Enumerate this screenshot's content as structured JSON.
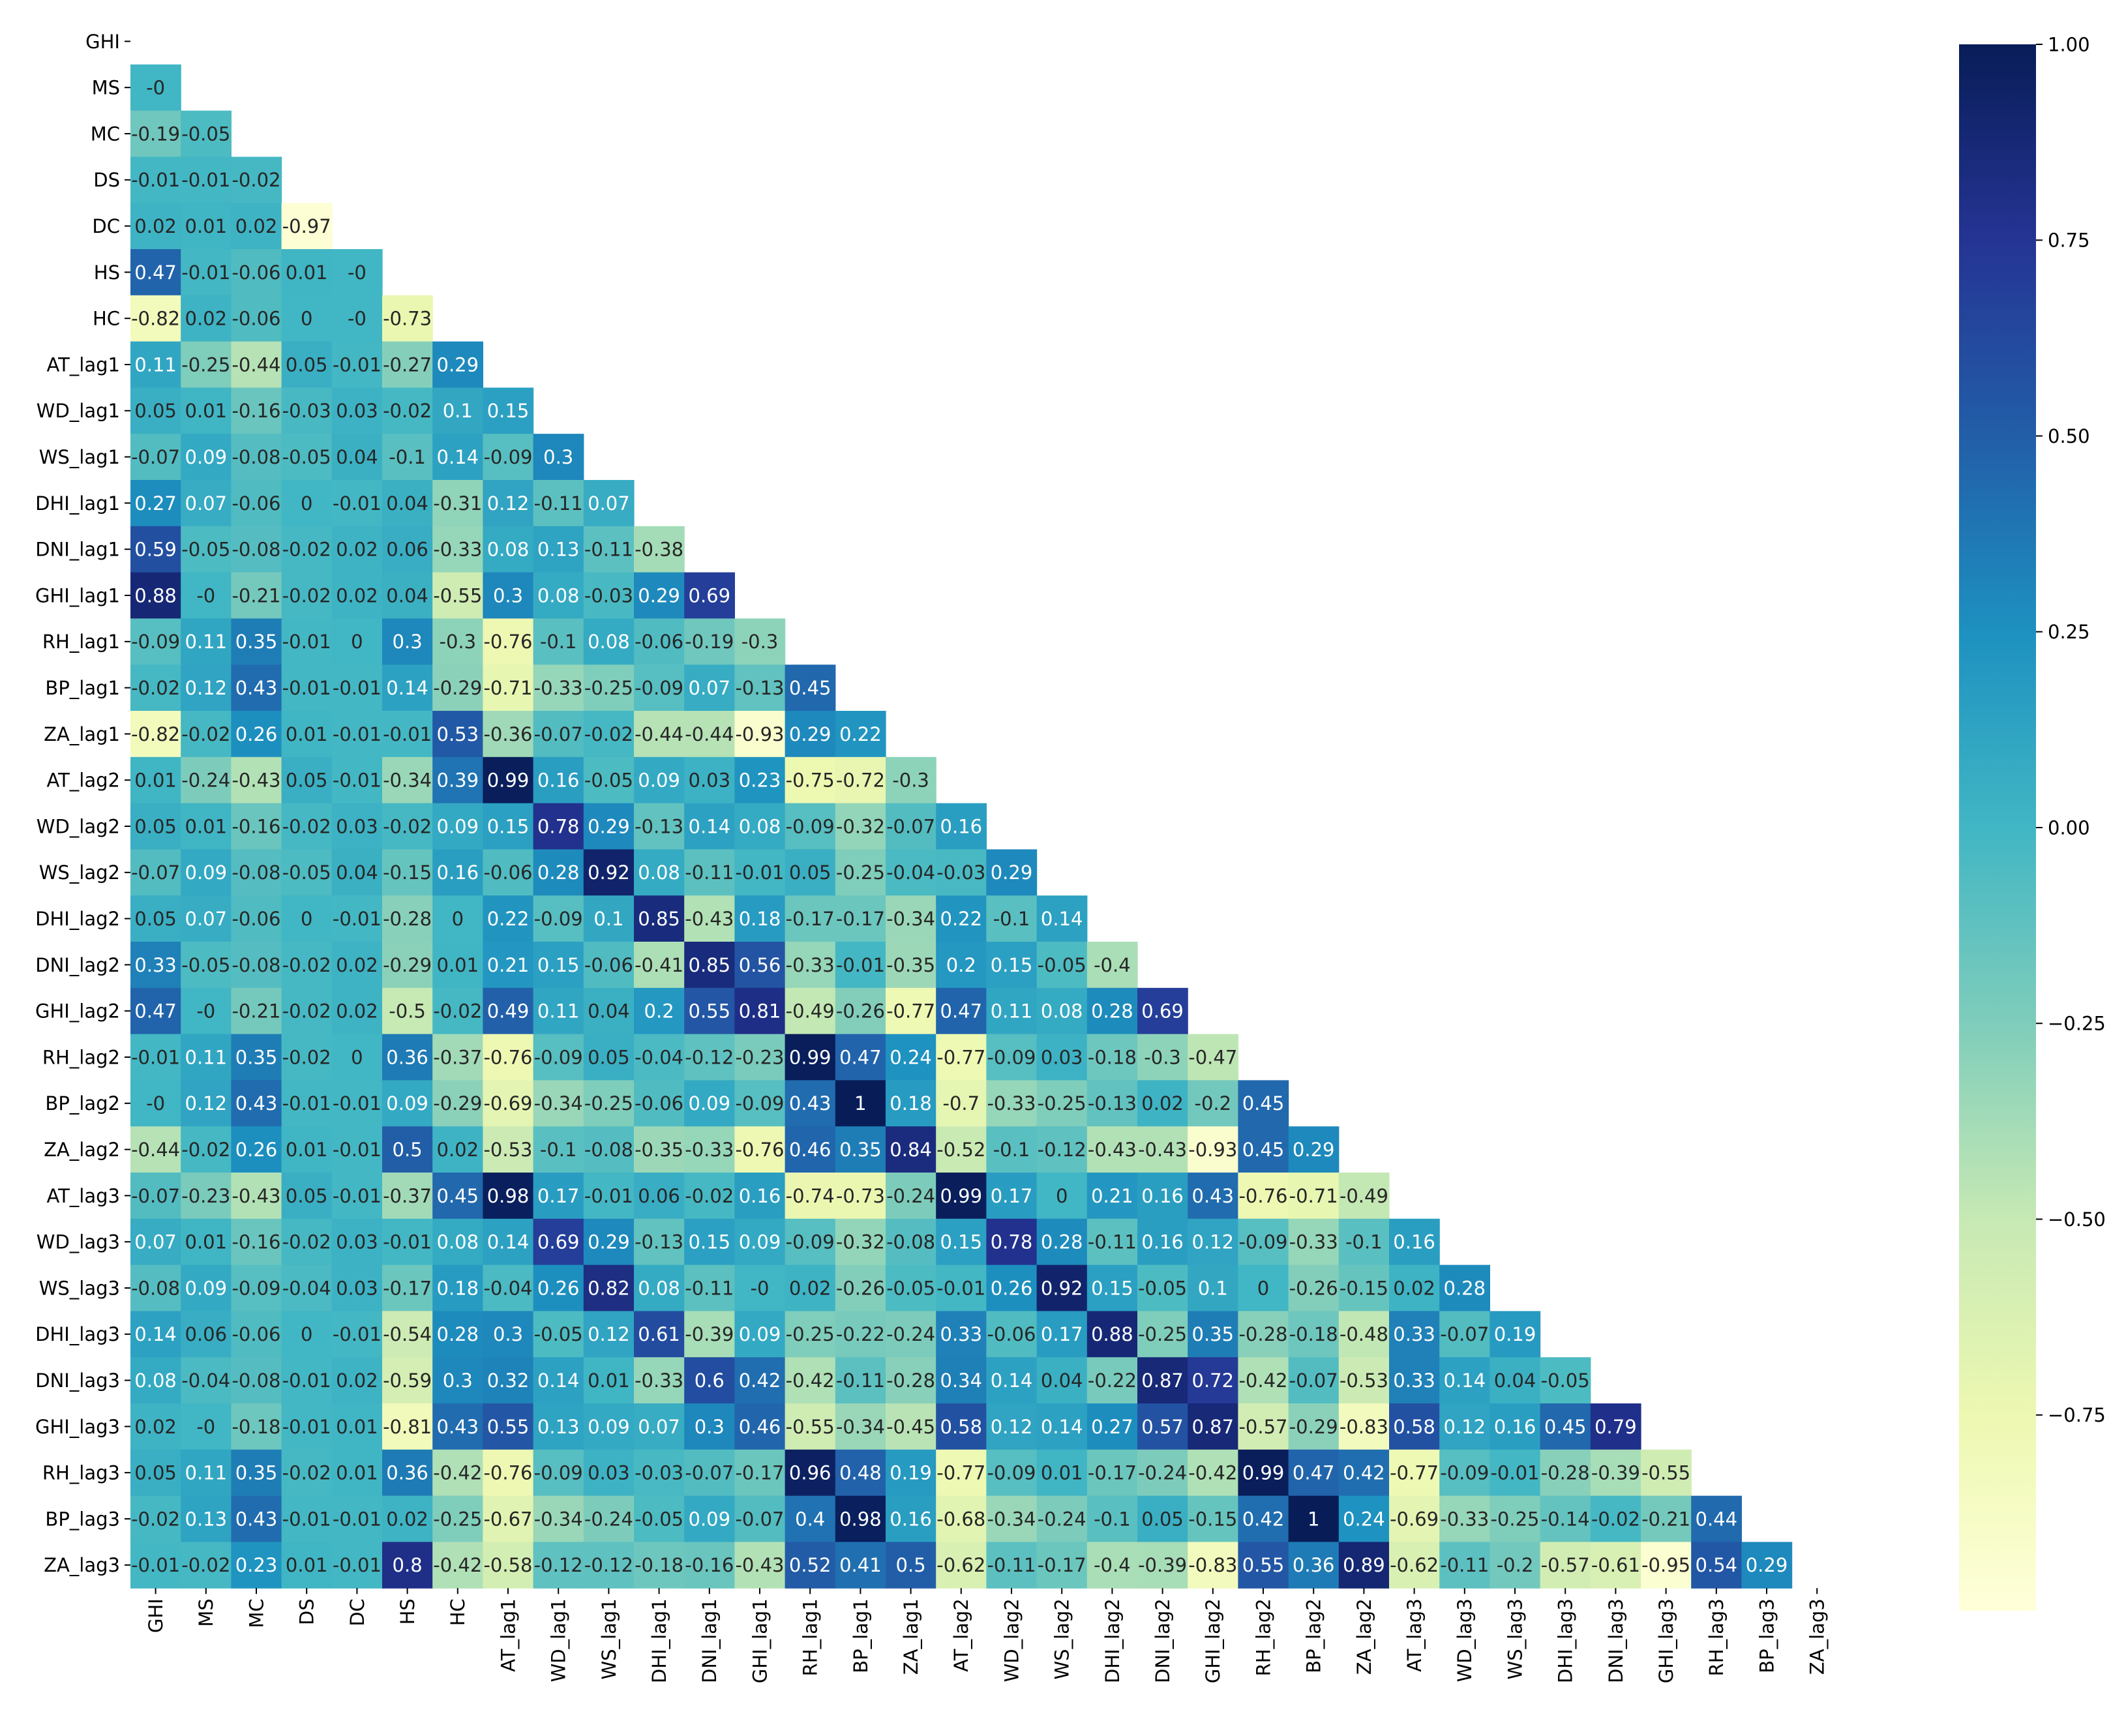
{
  "chart_data": {
    "type": "heatmap",
    "variables": [
      "GHI",
      "MS",
      "MC",
      "DS",
      "DC",
      "HS",
      "HC",
      "AT_lag1",
      "WD_lag1",
      "WS_lag1",
      "DHI_lag1",
      "DNI_lag1",
      "GHI_lag1",
      "RH_lag1",
      "BP_lag1",
      "ZA_lag1",
      "AT_lag2",
      "WD_lag2",
      "WS_lag2",
      "DHI_lag2",
      "DNI_lag2",
      "GHI_lag2",
      "RH_lag2",
      "BP_lag2",
      "ZA_lag2",
      "AT_lag3",
      "WD_lag3",
      "WS_lag3",
      "DHI_lag3",
      "DNI_lag3",
      "GHI_lag3",
      "RH_lag3",
      "BP_lag3",
      "ZA_lag3"
    ],
    "mask": "lower-triangle (diagonal and upper triangle empty)",
    "values": [
      [],
      [
        "-0"
      ],
      [
        "-0.19",
        "-0.05"
      ],
      [
        "-0.01",
        "-0.01",
        "-0.02"
      ],
      [
        "0.02",
        "0.01",
        "0.02",
        "-0.97"
      ],
      [
        "0.47",
        "-0.01",
        "-0.06",
        "0.01",
        "-0"
      ],
      [
        "-0.82",
        "0.02",
        "-0.06",
        "0",
        "-0",
        "-0.73"
      ],
      [
        "0.11",
        "-0.25",
        "-0.44",
        "0.05",
        "-0.01",
        "-0.27",
        "0.29"
      ],
      [
        "0.05",
        "0.01",
        "-0.16",
        "-0.03",
        "0.03",
        "-0.02",
        "0.1",
        "0.15"
      ],
      [
        "-0.07",
        "0.09",
        "-0.08",
        "-0.05",
        "0.04",
        "-0.1",
        "0.14",
        "-0.09",
        "0.3"
      ],
      [
        "0.27",
        "0.07",
        "-0.06",
        "0",
        "-0.01",
        "0.04",
        "-0.31",
        "0.12",
        "-0.11",
        "0.07"
      ],
      [
        "0.59",
        "-0.05",
        "-0.08",
        "-0.02",
        "0.02",
        "0.06",
        "-0.33",
        "0.08",
        "0.13",
        "-0.11",
        "-0.38"
      ],
      [
        "0.88",
        "-0",
        "-0.21",
        "-0.02",
        "0.02",
        "0.04",
        "-0.55",
        "0.3",
        "0.08",
        "-0.03",
        "0.29",
        "0.69"
      ],
      [
        "-0.09",
        "0.11",
        "0.35",
        "-0.01",
        "0",
        "0.3",
        "-0.3",
        "-0.76",
        "-0.1",
        "0.08",
        "-0.06",
        "-0.19",
        "-0.3"
      ],
      [
        "-0.02",
        "0.12",
        "0.43",
        "-0.01",
        "-0.01",
        "0.14",
        "-0.29",
        "-0.71",
        "-0.33",
        "-0.25",
        "-0.09",
        "0.07",
        "-0.13",
        "0.45"
      ],
      [
        "-0.82",
        "-0.02",
        "0.26",
        "0.01",
        "-0.01",
        "-0.01",
        "0.53",
        "-0.36",
        "-0.07",
        "-0.02",
        "-0.44",
        "-0.44",
        "-0.93",
        "0.29",
        "0.22"
      ],
      [
        "0.01",
        "-0.24",
        "-0.43",
        "0.05",
        "-0.01",
        "-0.34",
        "0.39",
        "0.99",
        "0.16",
        "-0.05",
        "0.09",
        "0.03",
        "0.23",
        "-0.75",
        "-0.72",
        "-0.3"
      ],
      [
        "0.05",
        "0.01",
        "-0.16",
        "-0.02",
        "0.03",
        "-0.02",
        "0.09",
        "0.15",
        "0.78",
        "0.29",
        "-0.13",
        "0.14",
        "0.08",
        "-0.09",
        "-0.32",
        "-0.07",
        "0.16"
      ],
      [
        "-0.07",
        "0.09",
        "-0.08",
        "-0.05",
        "0.04",
        "-0.15",
        "0.16",
        "-0.06",
        "0.28",
        "0.92",
        "0.08",
        "-0.11",
        "-0.01",
        "0.05",
        "-0.25",
        "-0.04",
        "-0.03",
        "0.29"
      ],
      [
        "0.05",
        "0.07",
        "-0.06",
        "0",
        "-0.01",
        "-0.28",
        "0",
        "0.22",
        "-0.09",
        "0.1",
        "0.85",
        "-0.43",
        "0.18",
        "-0.17",
        "-0.17",
        "-0.34",
        "0.22",
        "-0.1",
        "0.14"
      ],
      [
        "0.33",
        "-0.05",
        "-0.08",
        "-0.02",
        "0.02",
        "-0.29",
        "0.01",
        "0.21",
        "0.15",
        "-0.06",
        "-0.41",
        "0.85",
        "0.56",
        "-0.33",
        "-0.01",
        "-0.35",
        "0.2",
        "0.15",
        "-0.05",
        "-0.4"
      ],
      [
        "0.47",
        "-0",
        "-0.21",
        "-0.02",
        "0.02",
        "-0.5",
        "-0.02",
        "0.49",
        "0.11",
        "0.04",
        "0.2",
        "0.55",
        "0.81",
        "-0.49",
        "-0.26",
        "-0.77",
        "0.47",
        "0.11",
        "0.08",
        "0.28",
        "0.69"
      ],
      [
        "-0.01",
        "0.11",
        "0.35",
        "-0.02",
        "0",
        "0.36",
        "-0.37",
        "-0.76",
        "-0.09",
        "0.05",
        "-0.04",
        "-0.12",
        "-0.23",
        "0.99",
        "0.47",
        "0.24",
        "-0.77",
        "-0.09",
        "0.03",
        "-0.18",
        "-0.3",
        "-0.47"
      ],
      [
        "-0",
        "0.12",
        "0.43",
        "-0.01",
        "-0.01",
        "0.09",
        "-0.29",
        "-0.69",
        "-0.34",
        "-0.25",
        "-0.06",
        "0.09",
        "-0.09",
        "0.43",
        "1",
        "0.18",
        "-0.7",
        "-0.33",
        "-0.25",
        "-0.13",
        "0.02",
        "-0.2",
        "0.45"
      ],
      [
        "-0.44",
        "-0.02",
        "0.26",
        "0.01",
        "-0.01",
        "0.5",
        "0.02",
        "-0.53",
        "-0.1",
        "-0.08",
        "-0.35",
        "-0.33",
        "-0.76",
        "0.46",
        "0.35",
        "0.84",
        "-0.52",
        "-0.1",
        "-0.12",
        "-0.43",
        "-0.43",
        "-0.93",
        "0.45",
        "0.29"
      ],
      [
        "-0.07",
        "-0.23",
        "-0.43",
        "0.05",
        "-0.01",
        "-0.37",
        "0.45",
        "0.98",
        "0.17",
        "-0.01",
        "0.06",
        "-0.02",
        "0.16",
        "-0.74",
        "-0.73",
        "-0.24",
        "0.99",
        "0.17",
        "0",
        "0.21",
        "0.16",
        "0.43",
        "-0.76",
        "-0.71",
        "-0.49"
      ],
      [
        "0.07",
        "0.01",
        "-0.16",
        "-0.02",
        "0.03",
        "-0.01",
        "0.08",
        "0.14",
        "0.69",
        "0.29",
        "-0.13",
        "0.15",
        "0.09",
        "-0.09",
        "-0.32",
        "-0.08",
        "0.15",
        "0.78",
        "0.28",
        "-0.11",
        "0.16",
        "0.12",
        "-0.09",
        "-0.33",
        "-0.1",
        "0.16"
      ],
      [
        "-0.08",
        "0.09",
        "-0.09",
        "-0.04",
        "0.03",
        "-0.17",
        "0.18",
        "-0.04",
        "0.26",
        "0.82",
        "0.08",
        "-0.11",
        "-0",
        "0.02",
        "-0.26",
        "-0.05",
        "-0.01",
        "0.26",
        "0.92",
        "0.15",
        "-0.05",
        "0.1",
        "0",
        "-0.26",
        "-0.15",
        "0.02",
        "0.28"
      ],
      [
        "0.14",
        "0.06",
        "-0.06",
        "0",
        "-0.01",
        "-0.54",
        "0.28",
        "0.3",
        "-0.05",
        "0.12",
        "0.61",
        "-0.39",
        "0.09",
        "-0.25",
        "-0.22",
        "-0.24",
        "0.33",
        "-0.06",
        "0.17",
        "0.88",
        "-0.25",
        "0.35",
        "-0.28",
        "-0.18",
        "-0.48",
        "0.33",
        "-0.07",
        "0.19"
      ],
      [
        "0.08",
        "-0.04",
        "-0.08",
        "-0.01",
        "0.02",
        "-0.59",
        "0.3",
        "0.32",
        "0.14",
        "0.01",
        "-0.33",
        "0.6",
        "0.42",
        "-0.42",
        "-0.11",
        "-0.28",
        "0.34",
        "0.14",
        "0.04",
        "-0.22",
        "0.87",
        "0.72",
        "-0.42",
        "-0.07",
        "-0.53",
        "0.33",
        "0.14",
        "0.04",
        "-0.05"
      ],
      [
        "0.02",
        "-0",
        "-0.18",
        "-0.01",
        "0.01",
        "-0.81",
        "0.43",
        "0.55",
        "0.13",
        "0.09",
        "0.07",
        "0.3",
        "0.46",
        "-0.55",
        "-0.34",
        "-0.45",
        "0.58",
        "0.12",
        "0.14",
        "0.27",
        "0.57",
        "0.87",
        "-0.57",
        "-0.29",
        "-0.83",
        "0.58",
        "0.12",
        "0.16",
        "0.45",
        "0.79"
      ],
      [
        "0.05",
        "0.11",
        "0.35",
        "-0.02",
        "0.01",
        "0.36",
        "-0.42",
        "-0.76",
        "-0.09",
        "0.03",
        "-0.03",
        "-0.07",
        "-0.17",
        "0.96",
        "0.48",
        "0.19",
        "-0.77",
        "-0.09",
        "0.01",
        "-0.17",
        "-0.24",
        "-0.42",
        "0.99",
        "0.47",
        "0.42",
        "-0.77",
        "-0.09",
        "-0.01",
        "-0.28",
        "-0.39",
        "-0.55"
      ],
      [
        "-0.02",
        "0.13",
        "0.43",
        "-0.01",
        "-0.01",
        "0.02",
        "-0.25",
        "-0.67",
        "-0.34",
        "-0.24",
        "-0.05",
        "0.09",
        "-0.07",
        "0.4",
        "0.98",
        "0.16",
        "-0.68",
        "-0.34",
        "-0.24",
        "-0.1",
        "0.05",
        "-0.15",
        "0.42",
        "1",
        "0.24",
        "-0.69",
        "-0.33",
        "-0.25",
        "-0.14",
        "-0.02",
        "-0.21",
        "0.44"
      ],
      [
        "-0.01",
        "-0.02",
        "0.23",
        "0.01",
        "-0.01",
        "0.8",
        "-0.42",
        "-0.58",
        "-0.12",
        "-0.12",
        "-0.18",
        "-0.16",
        "-0.43",
        "0.52",
        "0.41",
        "0.5",
        "-0.62",
        "-0.11",
        "-0.17",
        "-0.4",
        "-0.39",
        "-0.83",
        "0.55",
        "0.36",
        "0.89",
        "-0.62",
        "-0.11",
        "-0.2",
        "-0.57",
        "-0.61",
        "-0.95",
        "0.54",
        "0.29"
      ]
    ],
    "colorbar": {
      "colormap": "YlGnBu",
      "range": [
        -1,
        1
      ],
      "tick_labels": [
        "1.00",
        "0.75",
        "0.50",
        "0.25",
        "0.00",
        "−0.25",
        "−0.50",
        "−0.75"
      ]
    },
    "title": "",
    "xlabel": "",
    "ylabel": ""
  }
}
